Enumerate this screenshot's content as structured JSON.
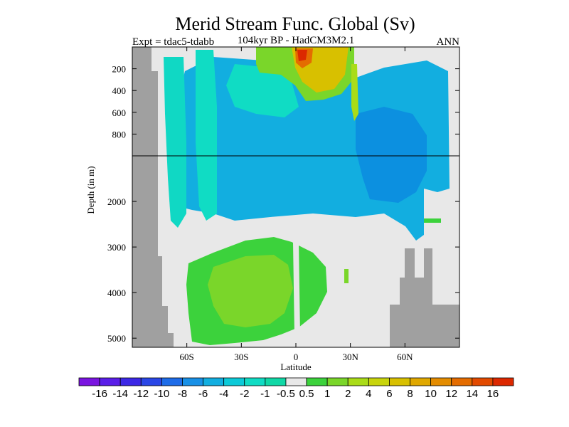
{
  "chart_data": {
    "type": "heatmap",
    "title": "Merid Stream Func. Global (Sv)",
    "subtitle_left": "Expt = tdac5-tdabb",
    "subtitle_center": "104kyr BP - HadCM3M2.1",
    "subtitle_right": "ANN",
    "xlabel": "Latitude",
    "ylabel": "Depth (in m)",
    "x_ticks": [
      "60S",
      "30S",
      "0",
      "30N",
      "60N"
    ],
    "x_tick_values": [
      -60,
      -30,
      0,
      30,
      60
    ],
    "y_ticks_upper": [
      "200",
      "400",
      "600",
      "800"
    ],
    "y_ticks_upper_values": [
      200,
      400,
      600,
      800
    ],
    "y_ticks_lower": [
      "2000",
      "3000",
      "4000",
      "5000"
    ],
    "y_ticks_lower_values": [
      2000,
      3000,
      4000,
      5000
    ],
    "xlim": [
      -90,
      90
    ],
    "upper_depth_range": [
      0,
      1000
    ],
    "lower_depth_range": [
      1000,
      5200
    ],
    "colorbar": {
      "labels": [
        "-16",
        "-14",
        "-12",
        "-10",
        "-8",
        "-6",
        "-4",
        "-2",
        "-1",
        "-0.5",
        "0.5",
        "1",
        "2",
        "4",
        "6",
        "8",
        "10",
        "12",
        "14",
        "16"
      ],
      "colors": [
        "#7a14e0",
        "#5a1ee8",
        "#3c28e6",
        "#2a46e6",
        "#1e6ce8",
        "#1890e6",
        "#12aee0",
        "#0ccad8",
        "#10dcc4",
        "#10d8a6",
        "#e8e8e8",
        "#3cd23c",
        "#7ad62a",
        "#aadc18",
        "#c8d40c",
        "#d8c000",
        "#e0a800",
        "#e48c00",
        "#e46c00",
        "#e24a00",
        "#dc2800"
      ]
    },
    "fields": [
      {
        "label": "bottom-left land mask",
        "value": "land"
      },
      {
        "label": "bottom-right land mask",
        "value": "land"
      },
      {
        "label": "upper cell",
        "value": -2
      },
      {
        "label": "deep cell",
        "value": 1
      },
      {
        "label": "tropical max",
        "value": 14
      }
    ]
  }
}
